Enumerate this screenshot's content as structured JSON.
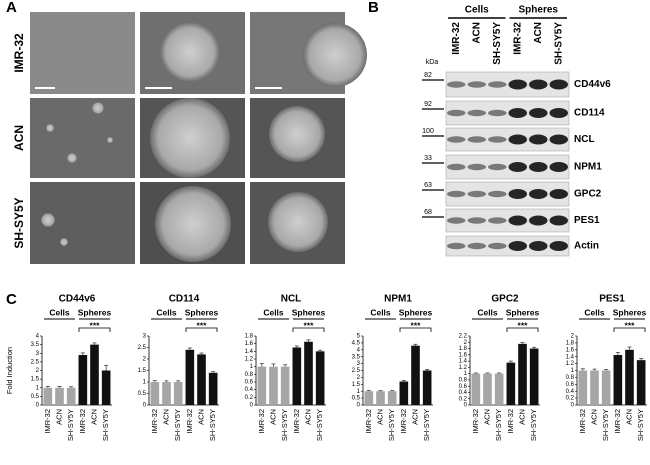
{
  "panel_labels": [
    "A",
    "B",
    "C"
  ],
  "micrographs": {
    "rows": [
      "IMR-32",
      "ACN",
      "SH-SY5Y"
    ]
  },
  "blot": {
    "groups": [
      "Cells",
      "Spheres"
    ],
    "lanes": [
      "IMR-32",
      "ACN",
      "SH-SY5Y",
      "IMR-32",
      "ACN",
      "SH-SY5Y"
    ],
    "kda_label": "kDa",
    "proteins": [
      {
        "name": "CD44v6",
        "kda": 82
      },
      {
        "name": "CD114",
        "kda": 92
      },
      {
        "name": "NCL",
        "kda": 100
      },
      {
        "name": "NPM1",
        "kda": 33
      },
      {
        "name": "GPC2",
        "kda": 63
      },
      {
        "name": "PES1",
        "kda": 68
      },
      {
        "name": "Actin"
      }
    ]
  },
  "chart_data": [
    {
      "type": "bar",
      "title": "CD44v6",
      "y_label": "Fold Induction",
      "categories": [
        "IMR-32",
        "ACN",
        "SH-SY5Y",
        "IMR-32",
        "ACN",
        "SH-SY5Y"
      ],
      "series": [
        {
          "name": "Cells",
          "color": "#a6a6a6",
          "values": [
            1,
            1,
            1,
            null,
            null,
            null
          ],
          "errors": [
            0.08,
            0.08,
            0.06,
            null,
            null,
            null
          ]
        },
        {
          "name": "Spheres",
          "color": "#111111",
          "values": [
            null,
            null,
            null,
            2.9,
            3.5,
            2.0
          ],
          "errors": [
            null,
            null,
            null,
            0.12,
            0.1,
            0.3
          ]
        }
      ],
      "significance": "***",
      "ylim": [
        0,
        4
      ],
      "yticks": [
        0,
        0.5,
        1,
        1.5,
        2,
        2.5,
        3,
        3.5,
        4
      ]
    },
    {
      "type": "bar",
      "title": "CD114",
      "categories": [
        "IMR-32",
        "ACN",
        "SH-SY5Y",
        "IMR-32",
        "ACN",
        "SH-SY5Y"
      ],
      "series": [
        {
          "name": "Cells",
          "color": "#a6a6a6",
          "values": [
            1,
            1,
            1,
            null,
            null,
            null
          ],
          "errors": [
            0.06,
            0.05,
            0.05,
            null,
            null,
            null
          ]
        },
        {
          "name": "Spheres",
          "color": "#111111",
          "values": [
            null,
            null,
            null,
            2.4,
            2.2,
            1.4
          ],
          "errors": [
            null,
            null,
            null,
            0.08,
            0.06,
            0.05
          ]
        }
      ],
      "significance": "***",
      "ylim": [
        0,
        3
      ],
      "yticks": [
        0,
        0.5,
        1,
        1.5,
        2,
        2.5,
        3
      ]
    },
    {
      "type": "bar",
      "title": "NCL",
      "categories": [
        "IMR-32",
        "ACN",
        "SH-SY5Y",
        "IMR-32",
        "ACN",
        "SH-SY5Y"
      ],
      "series": [
        {
          "name": "Cells",
          "color": "#a6a6a6",
          "values": [
            1,
            1,
            1,
            null,
            null,
            null
          ],
          "errors": [
            0.08,
            0.07,
            0.05,
            null,
            null,
            null
          ]
        },
        {
          "name": "Spheres",
          "color": "#111111",
          "values": [
            null,
            null,
            null,
            1.5,
            1.65,
            1.4
          ],
          "errors": [
            null,
            null,
            null,
            0.04,
            0.05,
            0.03
          ]
        }
      ],
      "significance": "***",
      "ylim": [
        0,
        1.8
      ],
      "yticks": [
        0,
        0.2,
        0.4,
        0.6,
        0.8,
        1,
        1.2,
        1.4,
        1.6,
        1.8
      ]
    },
    {
      "type": "bar",
      "title": "NPM1",
      "categories": [
        "IMR-32",
        "ACN",
        "SH-SY5Y",
        "IMR-32",
        "ACN",
        "SH-SY5Y"
      ],
      "series": [
        {
          "name": "Cells",
          "color": "#a6a6a6",
          "values": [
            1,
            1,
            1,
            null,
            null,
            null
          ],
          "errors": [
            0.05,
            0.04,
            0.04,
            null,
            null,
            null
          ]
        },
        {
          "name": "Spheres",
          "color": "#111111",
          "values": [
            null,
            null,
            null,
            1.7,
            4.3,
            2.5
          ],
          "errors": [
            null,
            null,
            null,
            0.08,
            0.1,
            0.08
          ]
        }
      ],
      "significance": "***",
      "ylim": [
        0,
        5
      ],
      "yticks": [
        0,
        0.5,
        1,
        1.5,
        2,
        2.5,
        3,
        3.5,
        4,
        4.5,
        5
      ]
    },
    {
      "type": "bar",
      "title": "GPC2",
      "categories": [
        "IMR-32",
        "ACN",
        "SH-SY5Y",
        "IMR-32",
        "ACN",
        "SH-SY5Y"
      ],
      "series": [
        {
          "name": "Cells",
          "color": "#a6a6a6",
          "values": [
            1,
            1,
            1,
            null,
            null,
            null
          ],
          "errors": [
            0.02,
            0.02,
            0.02,
            null,
            null,
            null
          ]
        },
        {
          "name": "Spheres",
          "color": "#111111",
          "values": [
            null,
            null,
            null,
            1.35,
            1.95,
            1.8
          ],
          "errors": [
            null,
            null,
            null,
            0.05,
            0.04,
            0.04
          ]
        }
      ],
      "significance": "***",
      "ylim": [
        0,
        2.2
      ],
      "yticks": [
        0,
        0.2,
        0.4,
        0.6,
        0.8,
        1,
        1.2,
        1.4,
        1.6,
        1.8,
        2,
        2.2
      ]
    },
    {
      "type": "bar",
      "title": "PES1",
      "categories": [
        "IMR-32",
        "ACN",
        "SH-SY5Y",
        "IMR-32",
        "ACN",
        "SH-SY5Y"
      ],
      "series": [
        {
          "name": "Cells",
          "color": "#a6a6a6",
          "values": [
            1,
            1,
            1,
            null,
            null,
            null
          ],
          "errors": [
            0.05,
            0.04,
            0.03,
            null,
            null,
            null
          ]
        },
        {
          "name": "Spheres",
          "color": "#111111",
          "values": [
            null,
            null,
            null,
            1.45,
            1.6,
            1.3
          ],
          "errors": [
            null,
            null,
            null,
            0.07,
            0.08,
            0.05
          ]
        }
      ],
      "significance": "***",
      "ylim": [
        0,
        2
      ],
      "yticks": [
        0,
        0.2,
        0.4,
        0.6,
        0.8,
        1,
        1.2,
        1.4,
        1.6,
        1.8,
        2
      ]
    }
  ]
}
